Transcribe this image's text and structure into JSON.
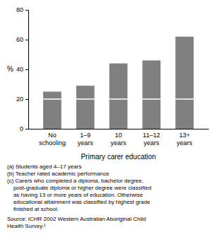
{
  "chart_data": {
    "type": "bar",
    "stacked": true,
    "grid": false,
    "categories": [
      "No\nschooling",
      "1–9\nyears",
      "10\nyears",
      "11–12\nyears",
      "13+\nyears"
    ],
    "series": [
      {
        "color": "#808080",
        "values": [
          20,
          20,
          20,
          20,
          20
        ]
      },
      {
        "color": "#808080",
        "values": [
          5,
          9,
          24,
          26,
          42
        ]
      }
    ],
    "xlabel": "Primary carer education",
    "ylabel": "%",
    "ylim": [
      0,
      80
    ],
    "yticks": [
      0,
      20,
      40,
      60,
      80
    ],
    "notes": [
      "(a) Students aged 4–17 years",
      "(b) Teacher rated academic performance",
      "(c) Carers who completed a diploma, bachelor degree,",
      "    post-graduate diploma or higher degree were classified",
      "    as having 13 or more years of education. Otherwise",
      "    educational attainment was classified by highest grade",
      "    finished at school."
    ],
    "source": [
      "Source: ICHR 2002 Western Australian Aboriginal Child",
      "Health Survey.¹"
    ]
  }
}
